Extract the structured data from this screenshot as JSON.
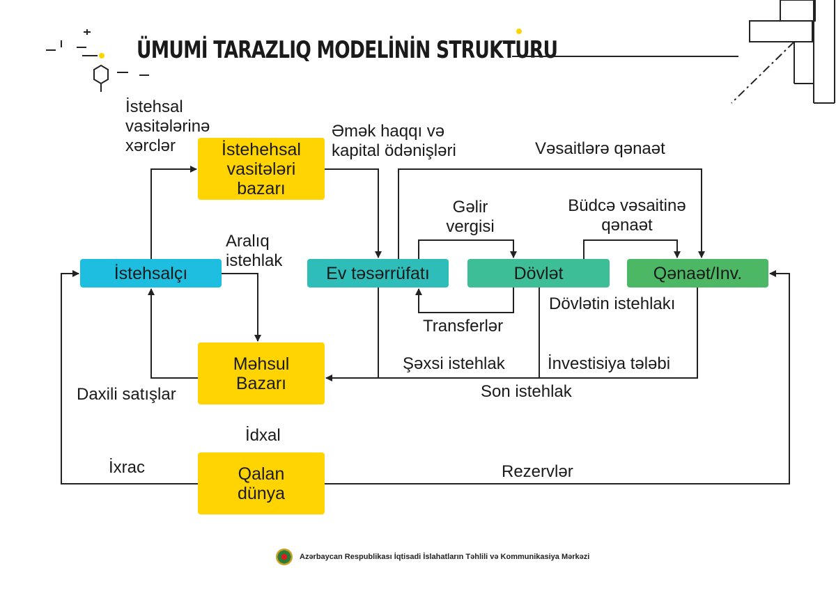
{
  "title": "ÜMUMİ TARAZLIQ MODELİNİN STRUKTURU",
  "colors": {
    "yellow": "#FFD400",
    "cyan": "#1EBEE0",
    "teal": "#2EBDB8",
    "mint": "#3DBE96",
    "green": "#4CB866"
  },
  "boxes": {
    "producer": "İstehsalçı",
    "means_market": "İstehehsal vasitələri bazarı",
    "household": "Ev təsərrüfatı",
    "government": "Dövlət",
    "savings": "Qənaət/Inv.",
    "product_market": "Məhsul Bazarı",
    "rest_world": "Qalan dünya"
  },
  "labels": {
    "means_costs": "İstehsal vasitələrinə xərclər",
    "wages": "Əmək haqqı və kapital ödənişləri",
    "savings_funds": "Vəsaitlərə qənaət",
    "income_tax": "Gəlir vergisi",
    "budget_savings": "Büdcə vəsaitinə qənaət",
    "intermediate": "Aralıq istehlak",
    "transfers": "Transferlər",
    "gov_consumption": "Dövlətin istehlakı",
    "private_consumption": "Şəxsi istehlak",
    "investment_demand": "İnvestisiya tələbi",
    "final_consumption": "Son istehlak",
    "domestic_sales": "Daxili satışlar",
    "import": "İdxal",
    "export": "İxrac",
    "reserves": "Rezervlər"
  },
  "footer": "Azərbaycan Respublikası İqtisadi İslahatların Təhlili və Kommunikasiya Mərkəzi"
}
